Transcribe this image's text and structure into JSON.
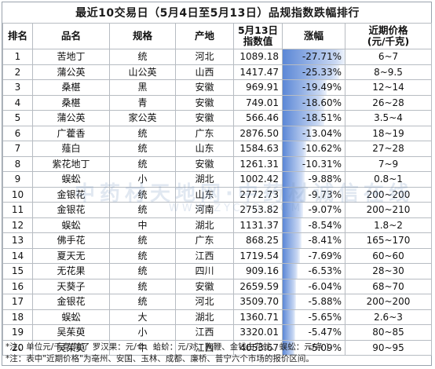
{
  "title": "最近10交易日（5月4日至5月13日）品规指数跌幅排行",
  "watermark": "中药材天地网·中药材诚信在线",
  "watermark_url": "WWW.ZYCTD.COM",
  "notes": [
    "*注：单位元/千克(除了 罗汉果：元/个、蛤蚧：元/对、狗鞭、金钱白花蛇、蜈蚣：元/条 )",
    "*注：表中\"近期价格\"为亳州、安国、玉林、成都、廉桥、普宁六个市场的报价区间。"
  ],
  "chart_data": {
    "type": "table",
    "columns": [
      "排名",
      "品名",
      "规格",
      "产地",
      "5月13日\n指数值",
      "涨幅",
      "近期价格\n(元/千克)"
    ],
    "rows": [
      [
        "1",
        "苦地丁",
        "统",
        "河北",
        "1089.18",
        "-27.71%",
        "6~7"
      ],
      [
        "2",
        "蒲公英",
        "山公英",
        "山西",
        "1417.47",
        "-25.33%",
        "8~9.5"
      ],
      [
        "3",
        "桑椹",
        "黑",
        "安徽",
        "969.91",
        "-19.49%",
        "12~14"
      ],
      [
        "4",
        "桑椹",
        "青",
        "安徽",
        "749.01",
        "-18.60%",
        "26~28"
      ],
      [
        "5",
        "蒲公英",
        "家公英",
        "安徽",
        "566.46",
        "-18.51%",
        "3.5~4"
      ],
      [
        "6",
        "广藿香",
        "统",
        "广东",
        "2876.50",
        "-13.04%",
        "18~19"
      ],
      [
        "7",
        "薤白",
        "统",
        "山东",
        "1584.63",
        "-10.62%",
        "27~28"
      ],
      [
        "8",
        "紫花地丁",
        "统",
        "安徽",
        "1261.31",
        "-10.31%",
        "7~9"
      ],
      [
        "9",
        "蜈蚣",
        "小",
        "湖北",
        "1002.42",
        "-9.88%",
        "0.8~1"
      ],
      [
        "10",
        "金银花",
        "统",
        "山东",
        "2772.73",
        "-9.73%",
        "200~200"
      ],
      [
        "11",
        "金银花",
        "统",
        "河南",
        "2753.82",
        "-9.07%",
        "200~210"
      ],
      [
        "12",
        "蜈蚣",
        "中",
        "湖北",
        "1131.37",
        "-8.54%",
        "1.8~2"
      ],
      [
        "13",
        "佛手花",
        "统",
        "广东",
        "868.25",
        "-8.41%",
        "165~170"
      ],
      [
        "14",
        "夏天无",
        "统",
        "江西",
        "1719.54",
        "-7.69%",
        "60~60"
      ],
      [
        "15",
        "无花果",
        "统",
        "四川",
        "909.16",
        "-6.53%",
        "28~30"
      ],
      [
        "16",
        "天葵子",
        "统",
        "安徽",
        "2659.59",
        "-6.04%",
        "68~70"
      ],
      [
        "17",
        "金银花",
        "统",
        "河北",
        "3509.70",
        "-5.88%",
        "200~200"
      ],
      [
        "18",
        "蜈蚣",
        "大",
        "湖北",
        "1360.71",
        "-5.65%",
        "2.6~3"
      ],
      [
        "19",
        "吴茱萸",
        "小",
        "江西",
        "3320.01",
        "-5.47%",
        "80~85"
      ],
      [
        "20",
        "吴茱萸",
        "中",
        "江西",
        "4053.67",
        "-5.09%",
        "90~95"
      ]
    ],
    "change_values": [
      -27.71,
      -25.33,
      -19.49,
      -18.6,
      -18.51,
      -13.04,
      -10.62,
      -10.31,
      -9.88,
      -9.73,
      -9.07,
      -8.54,
      -8.41,
      -7.69,
      -6.53,
      -6.04,
      -5.88,
      -5.65,
      -5.47,
      -5.09
    ],
    "bar_color": "#5b87d6"
  }
}
